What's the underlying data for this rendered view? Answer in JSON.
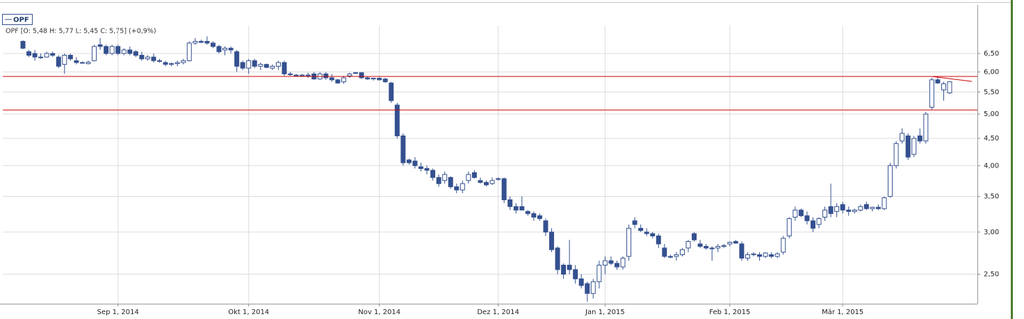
{
  "chart_data": {
    "type": "candlestick",
    "header": "OPF [O: 5,48  H: 5,77  L: 5,45  C: 5,75] (+0,9%)",
    "categories": [
      null,
      null,
      null,
      null,
      null,
      null,
      null,
      null,
      null,
      null,
      null,
      null,
      null,
      null,
      null,
      null,
      "Sep 1, 2014",
      null,
      null,
      null,
      null,
      null,
      null,
      null,
      null,
      null,
      null,
      null,
      null,
      null,
      null,
      null,
      null,
      null,
      null,
      null,
      null,
      null,
      "Okt 1, 2014",
      null,
      null,
      null,
      null,
      null,
      null,
      null,
      null,
      null,
      null,
      null,
      null,
      null,
      null,
      null,
      null,
      null,
      null,
      null,
      null,
      null,
      "Nov 1, 2014",
      null,
      null,
      null,
      null,
      null,
      null,
      null,
      null,
      null,
      null,
      null,
      null,
      null,
      null,
      null,
      null,
      null,
      null,
      null,
      "Dez 1, 2014",
      null,
      null,
      null,
      null,
      null,
      null,
      null,
      null,
      null,
      null,
      null,
      null,
      null,
      null,
      null,
      null,
      null,
      "Jan 1, 2015",
      null,
      null,
      null,
      null,
      null,
      null,
      null,
      null,
      null,
      null,
      null,
      null,
      null,
      null,
      null,
      null,
      null,
      null,
      null,
      null,
      "Feb 1, 2015",
      null,
      null,
      null,
      null,
      null,
      null,
      null,
      null,
      null,
      null,
      null,
      null,
      null,
      null,
      null,
      null,
      null,
      null,
      "Mär 1, 2015",
      null,
      null,
      null,
      null,
      null,
      null,
      null,
      null,
      null,
      null,
      null,
      null,
      null,
      null,
      null,
      null,
      null,
      null
    ],
    "series": [
      {
        "name": "OPF",
        "up_color": "#ffffff",
        "down_color": "#34508f",
        "line_color": "#34508f",
        "open": [
          6.85,
          6.55,
          6.5,
          6.4,
          6.4,
          6.5,
          6.4,
          6.2,
          6.45,
          6.3,
          6.25,
          6.22,
          6.3,
          6.75,
          6.7,
          6.5,
          6.7,
          6.5,
          6.6,
          6.55,
          6.45,
          6.35,
          6.4,
          6.3,
          6.25,
          6.2,
          6.22,
          6.25,
          6.3,
          6.8,
          6.85,
          6.85,
          6.8,
          6.7,
          6.6,
          6.65,
          6.55,
          6.25,
          6.1,
          6.3,
          6.15,
          6.2,
          6.1,
          6.15,
          6.25,
          5.95,
          5.92,
          5.9,
          5.92,
          5.95,
          5.82,
          5.95,
          5.85,
          5.8,
          5.75,
          5.9,
          5.98,
          5.98,
          5.85,
          5.82,
          5.84,
          5.82,
          5.72,
          5.2,
          4.55,
          4.1,
          4.08,
          3.98,
          3.95,
          3.92,
          3.8,
          3.75,
          3.8,
          3.65,
          3.6,
          3.75,
          3.88,
          3.75,
          3.72,
          3.7,
          3.78,
          3.78,
          3.45,
          3.35,
          3.35,
          3.28,
          3.25,
          3.22,
          3.15,
          3.0,
          2.8,
          2.6,
          2.6,
          2.55,
          2.45,
          2.4,
          2.3,
          2.42,
          2.6,
          2.65,
          2.62,
          2.58,
          2.7,
          3.15,
          3.05,
          3.0,
          2.98,
          2.95,
          2.8,
          2.7,
          2.7,
          2.72,
          2.8,
          2.98,
          2.85,
          2.82,
          2.8,
          2.8,
          2.82,
          2.85,
          2.88,
          2.85,
          2.68,
          2.72,
          2.72,
          2.7,
          2.72,
          2.7,
          2.75,
          2.95,
          3.2,
          3.3,
          3.22,
          3.15,
          3.1,
          3.2,
          3.35,
          3.28,
          3.38,
          3.3,
          3.28,
          3.3,
          3.38,
          3.32,
          3.34,
          3.32,
          3.5,
          4.0,
          4.45,
          4.55,
          4.2,
          4.55,
          4.45,
          5.15,
          5.8,
          5.55,
          5.48
        ],
        "high": [
          6.88,
          6.6,
          6.6,
          6.5,
          6.55,
          6.55,
          6.45,
          6.5,
          6.5,
          6.4,
          6.28,
          6.3,
          6.75,
          6.95,
          6.75,
          6.75,
          6.75,
          6.65,
          6.7,
          6.6,
          6.55,
          6.45,
          6.5,
          6.35,
          6.3,
          6.25,
          6.3,
          6.35,
          6.85,
          6.95,
          6.9,
          7.0,
          6.85,
          6.75,
          6.7,
          6.7,
          6.6,
          6.3,
          6.35,
          6.35,
          6.25,
          6.22,
          6.2,
          6.3,
          6.3,
          6.0,
          5.95,
          5.95,
          5.98,
          6.0,
          6.0,
          6.0,
          5.95,
          5.82,
          5.9,
          5.98,
          6.0,
          6.0,
          5.88,
          5.85,
          5.86,
          5.85,
          5.75,
          5.25,
          4.6,
          4.12,
          4.15,
          4.05,
          4.0,
          3.95,
          3.85,
          3.9,
          3.82,
          3.7,
          3.75,
          3.9,
          3.92,
          3.8,
          3.75,
          3.8,
          3.8,
          3.8,
          3.5,
          3.4,
          3.5,
          3.3,
          3.28,
          3.25,
          3.18,
          3.05,
          2.82,
          2.62,
          2.9,
          2.6,
          2.5,
          2.42,
          2.45,
          2.65,
          2.7,
          2.7,
          2.65,
          2.7,
          3.1,
          3.2,
          3.1,
          3.05,
          3.0,
          2.98,
          2.85,
          2.72,
          2.75,
          2.8,
          2.9,
          3.0,
          2.9,
          2.85,
          2.82,
          2.85,
          2.85,
          2.88,
          2.9,
          2.88,
          2.75,
          2.75,
          2.75,
          2.75,
          2.75,
          2.75,
          2.95,
          3.2,
          3.35,
          3.32,
          3.28,
          3.2,
          3.2,
          3.35,
          3.7,
          3.4,
          3.42,
          3.35,
          3.32,
          3.38,
          3.42,
          3.35,
          3.38,
          3.5,
          4.05,
          4.45,
          4.7,
          4.6,
          4.55,
          4.7,
          5.05,
          5.85,
          5.85,
          5.75,
          5.77
        ],
        "low": [
          6.62,
          6.4,
          6.3,
          6.35,
          6.38,
          6.4,
          6.1,
          5.95,
          6.3,
          6.2,
          6.22,
          6.2,
          6.28,
          6.6,
          6.45,
          6.45,
          6.45,
          6.45,
          6.45,
          6.4,
          6.3,
          6.3,
          6.25,
          6.25,
          6.15,
          6.15,
          6.15,
          6.2,
          6.28,
          6.75,
          6.8,
          6.75,
          6.65,
          6.5,
          6.45,
          6.5,
          6.0,
          6.05,
          5.95,
          6.1,
          6.05,
          6.1,
          6.05,
          6.05,
          5.9,
          5.9,
          5.88,
          5.88,
          5.85,
          5.8,
          5.8,
          5.8,
          5.75,
          5.7,
          5.7,
          5.85,
          5.95,
          5.82,
          5.8,
          5.78,
          5.78,
          5.72,
          5.25,
          4.5,
          4.0,
          4.02,
          3.95,
          3.9,
          3.85,
          3.75,
          3.65,
          3.7,
          3.62,
          3.55,
          3.55,
          3.7,
          3.78,
          3.7,
          3.66,
          3.68,
          3.75,
          3.4,
          3.3,
          3.25,
          3.3,
          3.22,
          3.15,
          3.15,
          2.95,
          2.75,
          2.5,
          2.45,
          2.5,
          2.4,
          2.35,
          2.22,
          2.25,
          2.35,
          2.5,
          2.6,
          2.55,
          2.55,
          2.65,
          3.05,
          3.0,
          2.95,
          2.92,
          2.8,
          2.68,
          2.68,
          2.65,
          2.7,
          2.75,
          2.88,
          2.8,
          2.78,
          2.65,
          2.75,
          2.8,
          2.82,
          2.85,
          2.65,
          2.65,
          2.7,
          2.65,
          2.68,
          2.68,
          2.68,
          2.72,
          2.92,
          3.15,
          3.2,
          3.1,
          3.0,
          3.05,
          3.15,
          3.2,
          3.2,
          3.25,
          3.22,
          3.25,
          3.28,
          3.3,
          3.28,
          3.3,
          3.3,
          3.48,
          3.95,
          4.4,
          4.1,
          4.15,
          4.4,
          4.4,
          5.1,
          5.7,
          5.3,
          5.45
        ],
        "close": [
          6.65,
          6.45,
          6.4,
          6.38,
          6.5,
          6.45,
          6.15,
          6.45,
          6.35,
          6.25,
          6.24,
          6.26,
          6.7,
          6.7,
          6.5,
          6.7,
          6.5,
          6.6,
          6.5,
          6.45,
          6.35,
          6.4,
          6.3,
          6.28,
          6.2,
          6.22,
          6.25,
          6.3,
          6.8,
          6.85,
          6.82,
          6.8,
          6.7,
          6.55,
          6.65,
          6.6,
          6.15,
          6.1,
          6.3,
          6.15,
          6.2,
          6.12,
          6.15,
          6.25,
          5.95,
          5.93,
          5.9,
          5.92,
          5.9,
          5.82,
          5.95,
          5.85,
          5.8,
          5.72,
          5.85,
          5.95,
          5.97,
          5.85,
          5.82,
          5.84,
          5.8,
          5.75,
          5.3,
          4.55,
          4.05,
          4.05,
          4.0,
          3.95,
          3.92,
          3.8,
          3.7,
          3.85,
          3.65,
          3.6,
          3.7,
          3.85,
          3.8,
          3.72,
          3.68,
          3.75,
          3.77,
          3.45,
          3.35,
          3.3,
          3.3,
          3.25,
          3.2,
          3.18,
          3.0,
          2.78,
          2.55,
          2.5,
          2.55,
          2.45,
          2.38,
          2.3,
          2.42,
          2.6,
          2.65,
          2.62,
          2.58,
          2.68,
          3.05,
          3.1,
          3.02,
          2.98,
          2.95,
          2.85,
          2.7,
          2.69,
          2.72,
          2.78,
          2.88,
          2.9,
          2.82,
          2.8,
          2.79,
          2.82,
          2.83,
          2.87,
          2.86,
          2.68,
          2.72,
          2.73,
          2.7,
          2.74,
          2.7,
          2.73,
          2.92,
          3.18,
          3.3,
          3.22,
          3.15,
          3.05,
          3.18,
          3.3,
          3.25,
          3.35,
          3.3,
          3.28,
          3.3,
          3.35,
          3.32,
          3.34,
          3.32,
          3.48,
          4.0,
          4.4,
          4.6,
          4.15,
          4.5,
          4.45,
          5.0,
          5.8,
          5.72,
          5.7,
          5.75
        ]
      }
    ],
    "ylog": true,
    "ylim": [
      2.2,
      7.33
    ],
    "yticks": [
      {
        "value": 2.5,
        "label": "2,50"
      },
      {
        "value": 3,
        "label": "3,00"
      },
      {
        "value": 3.5,
        "label": "3,50"
      },
      {
        "value": 4,
        "label": "4,00"
      },
      {
        "value": 4.5,
        "label": "4,50"
      },
      {
        "value": 5,
        "label": "5,00"
      },
      {
        "value": 5.5,
        "label": "5,50"
      },
      {
        "value": 6,
        "label": "6,00"
      },
      {
        "value": 6.5,
        "label": "6,50"
      }
    ],
    "grid": true,
    "hlines": [
      5.885,
      5.09
    ],
    "trendline": [
      5.885,
      5.76
    ],
    "annotation_color": "#cc0000"
  }
}
